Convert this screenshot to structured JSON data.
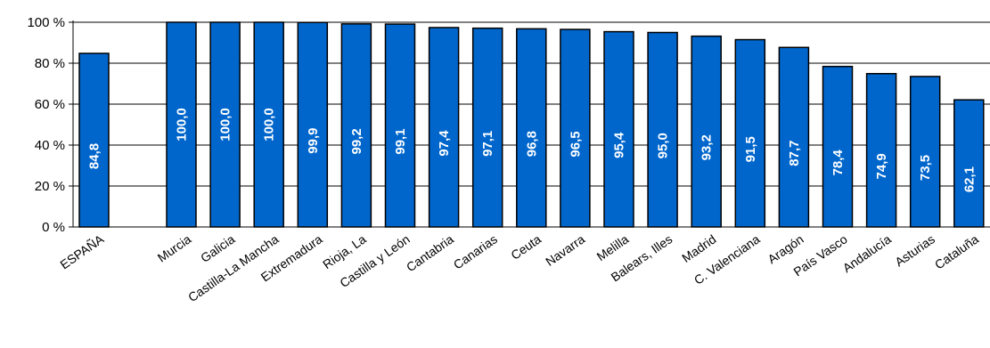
{
  "chart_data": {
    "type": "bar",
    "categories": [
      "ESPAÑA",
      "Murcia",
      "Galicia",
      "Castilla-La Mancha",
      "Extremadura",
      "Rioja, La",
      "Castilla y León",
      "Cantabria",
      "Canarias",
      "Ceuta",
      "Navarra",
      "Melilla",
      "Balears, Illes",
      "Madrid",
      "C. Valenciana",
      "Aragón",
      "País Vasco",
      "Andalucía",
      "Asturias",
      "Cataluña"
    ],
    "values": [
      84.8,
      100.0,
      100.0,
      100.0,
      99.9,
      99.2,
      99.1,
      97.4,
      97.1,
      96.8,
      96.5,
      95.4,
      95.0,
      93.2,
      91.5,
      87.7,
      78.4,
      74.9,
      73.5,
      62.1
    ],
    "value_labels": [
      "84,8",
      "100,0",
      "100,0",
      "100,0",
      "99,9",
      "99,2",
      "99,1",
      "97,4",
      "97,1",
      "96,8",
      "96,5",
      "95,4",
      "95,0",
      "93,2",
      "91,5",
      "87,7",
      "78,4",
      "74,9",
      "73,5",
      "62,1"
    ],
    "yticks": [
      "0 %",
      "20 %",
      "40 %",
      "60 %",
      "80 %",
      "100 %"
    ],
    "ylim": [
      0,
      100
    ],
    "grid": true,
    "bar_color": "#0066cc",
    "title": "",
    "xlabel": "",
    "ylabel": ""
  }
}
